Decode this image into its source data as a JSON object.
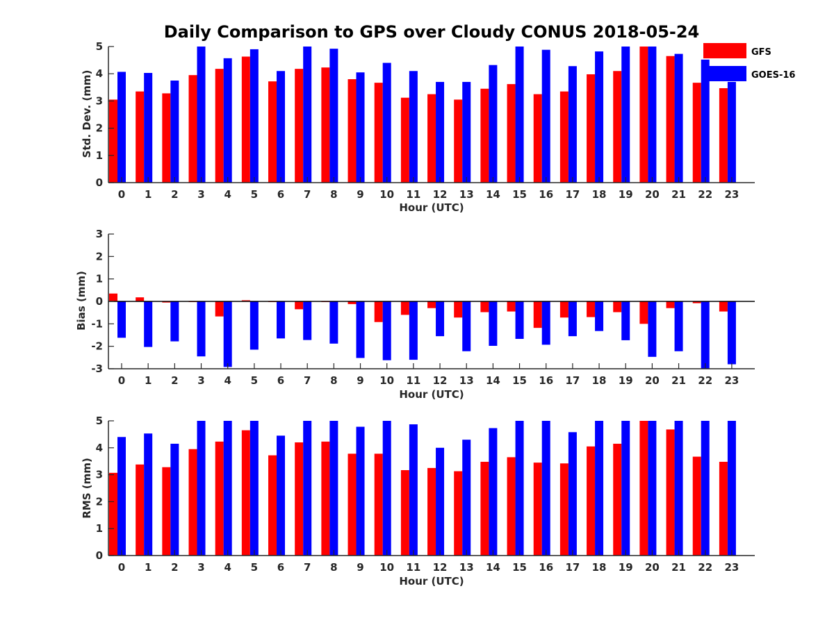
{
  "chart_data": [
    {
      "type": "bar",
      "title": "Daily Comparison to GPS over Cloudy CONUS 2018-05-24",
      "xlabel": "Hour (UTC)",
      "ylabel": "Std. Dev. (mm)",
      "ylim": [
        0,
        5
      ],
      "yticks": [
        "0",
        "1",
        "2",
        "3",
        "4",
        "5"
      ],
      "categories": [
        "0",
        "1",
        "2",
        "3",
        "4",
        "5",
        "6",
        "7",
        "8",
        "9",
        "10",
        "11",
        "12",
        "13",
        "14",
        "15",
        "16",
        "17",
        "18",
        "19",
        "20",
        "21",
        "22",
        "23"
      ],
      "series": [
        {
          "name": "GFS",
          "color": "#ff0000",
          "values": [
            3.05,
            3.35,
            3.28,
            3.95,
            4.18,
            4.63,
            3.72,
            4.18,
            4.23,
            3.8,
            3.67,
            3.12,
            3.25,
            3.05,
            3.45,
            3.62,
            3.25,
            3.35,
            3.98,
            4.1,
            5.0,
            4.65,
            3.67,
            3.47
          ]
        },
        {
          "name": "GOES-16",
          "color": "#0000ff",
          "values": [
            4.07,
            4.03,
            3.75,
            5.0,
            4.57,
            4.9,
            4.1,
            5.0,
            4.92,
            4.05,
            4.4,
            4.1,
            3.7,
            3.7,
            4.32,
            5.0,
            4.88,
            4.28,
            4.82,
            5.0,
            5.0,
            4.73,
            4.52,
            3.7
          ]
        }
      ],
      "grid": false,
      "legend": "top-right"
    },
    {
      "type": "bar",
      "xlabel": "Hour (UTC)",
      "ylabel": "Bias (mm)",
      "ylim": [
        -3,
        3
      ],
      "yticks": [
        "-3",
        "-2",
        "-1",
        "0",
        "1",
        "2",
        "3"
      ],
      "zero_line": true,
      "categories": [
        "0",
        "1",
        "2",
        "3",
        "4",
        "5",
        "6",
        "7",
        "8",
        "9",
        "10",
        "11",
        "12",
        "13",
        "14",
        "15",
        "16",
        "17",
        "18",
        "19",
        "20",
        "21",
        "22",
        "23"
      ],
      "series": [
        {
          "name": "GFS",
          "color": "#ff0000",
          "values": [
            0.35,
            0.18,
            -0.05,
            -0.03,
            -0.67,
            0.05,
            -0.03,
            -0.35,
            -0.03,
            -0.12,
            -0.92,
            -0.6,
            -0.3,
            -0.72,
            -0.48,
            -0.45,
            -1.18,
            -0.72,
            -0.7,
            -0.48,
            -1.0,
            -0.3,
            -0.08,
            -0.45
          ]
        },
        {
          "name": "GOES-16",
          "color": "#0000ff",
          "values": [
            -1.62,
            -2.03,
            -1.78,
            -2.45,
            -2.92,
            -2.15,
            -1.65,
            -1.72,
            -1.88,
            -2.52,
            -2.62,
            -2.6,
            -1.55,
            -2.22,
            -1.98,
            -1.67,
            -1.93,
            -1.55,
            -1.32,
            -1.73,
            -2.47,
            -2.22,
            -3.0,
            -2.8
          ]
        }
      ],
      "grid": false
    },
    {
      "type": "bar",
      "xlabel": "Hour (UTC)",
      "ylabel": "RMS (mm)",
      "ylim": [
        0,
        5
      ],
      "yticks": [
        "0",
        "1",
        "2",
        "3",
        "4",
        "5"
      ],
      "categories": [
        "0",
        "1",
        "2",
        "3",
        "4",
        "5",
        "6",
        "7",
        "8",
        "9",
        "10",
        "11",
        "12",
        "13",
        "14",
        "15",
        "16",
        "17",
        "18",
        "19",
        "20",
        "21",
        "22",
        "23"
      ],
      "series": [
        {
          "name": "GFS",
          "color": "#ff0000",
          "values": [
            3.07,
            3.38,
            3.28,
            3.95,
            4.23,
            4.65,
            3.72,
            4.2,
            4.23,
            3.78,
            3.78,
            3.17,
            3.25,
            3.13,
            3.48,
            3.65,
            3.45,
            3.42,
            4.05,
            4.15,
            5.0,
            4.68,
            3.67,
            3.48
          ]
        },
        {
          "name": "GOES-16",
          "color": "#0000ff",
          "values": [
            4.4,
            4.53,
            4.15,
            5.0,
            5.0,
            5.0,
            4.45,
            5.0,
            5.0,
            4.78,
            5.0,
            4.87,
            4.0,
            4.3,
            4.73,
            5.0,
            5.0,
            4.58,
            5.0,
            5.0,
            5.0,
            5.0,
            5.0,
            5.0
          ]
        }
      ],
      "grid": false
    }
  ]
}
